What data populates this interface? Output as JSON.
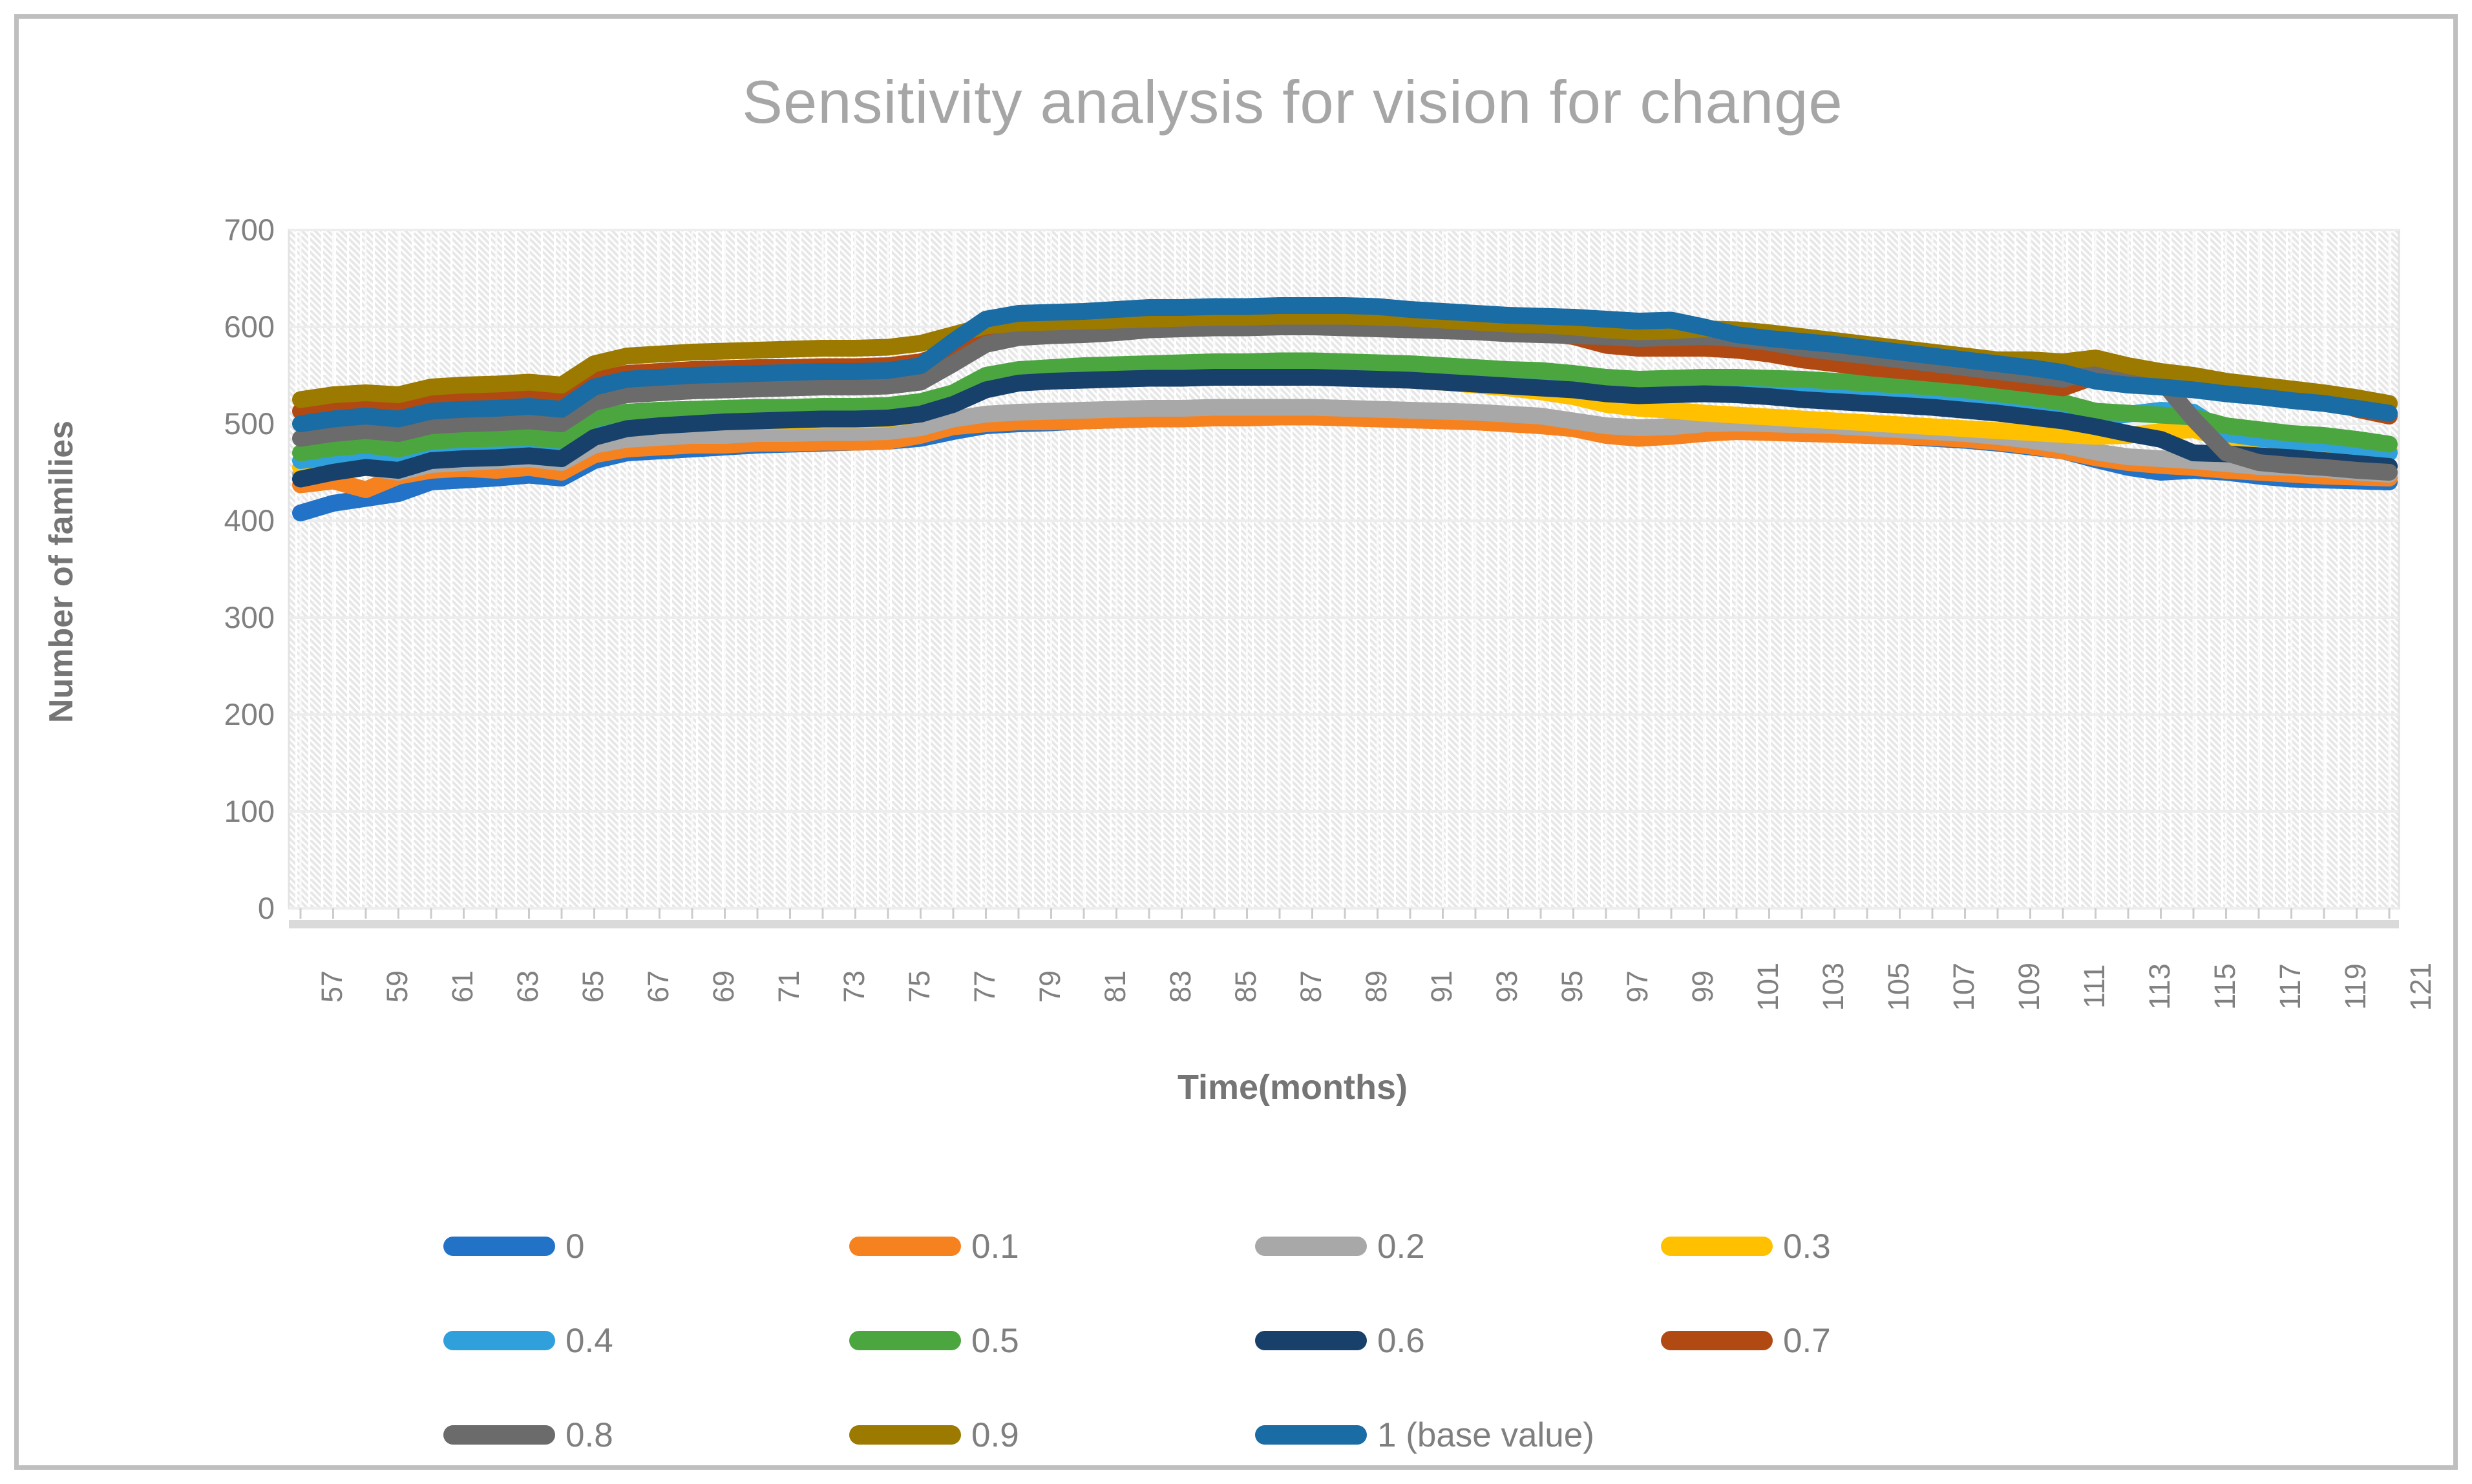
{
  "figure": {
    "border_color": "#bfbfbf",
    "background": "#ffffff"
  },
  "chart_data": {
    "type": "line",
    "title": "Sensitivity analysis for vision for change",
    "xlabel": "Time(months)",
    "ylabel": "Number of families",
    "xlim": [
      57,
      121
    ],
    "ylim": [
      0,
      700
    ],
    "y_ticks": [
      0,
      100,
      200,
      300,
      400,
      500,
      600,
      700
    ],
    "x_tick_labels": [
      57,
      59,
      61,
      63,
      65,
      67,
      69,
      71,
      73,
      75,
      77,
      79,
      81,
      83,
      85,
      87,
      89,
      91,
      93,
      95,
      97,
      99,
      101,
      103,
      105,
      107,
      109,
      111,
      113,
      115,
      117,
      119,
      121
    ],
    "x": [
      57,
      58,
      59,
      60,
      61,
      62,
      63,
      64,
      65,
      66,
      67,
      68,
      69,
      70,
      71,
      72,
      73,
      74,
      75,
      76,
      77,
      78,
      79,
      80,
      81,
      82,
      83,
      84,
      85,
      86,
      87,
      88,
      89,
      90,
      91,
      92,
      93,
      94,
      95,
      96,
      97,
      98,
      99,
      100,
      101,
      102,
      103,
      104,
      105,
      106,
      107,
      108,
      109,
      110,
      111,
      112,
      113,
      114,
      115,
      116,
      117,
      118,
      119,
      120,
      121
    ],
    "grid": "horizontal-major",
    "plot_background": "diagonal-hatch-pattern",
    "legend_position": "bottom",
    "series": [
      {
        "name": "0",
        "color": "#2272c8",
        "values": [
          408,
          418,
          423,
          428,
          440,
          442,
          444,
          447,
          444,
          462,
          470,
          472,
          474,
          476,
          478,
          479,
          480,
          481,
          482,
          485,
          492,
          498,
          500,
          501,
          503,
          504,
          505,
          506,
          506,
          507,
          508,
          508,
          507,
          507,
          506,
          505,
          504,
          502,
          500,
          497,
          493,
          490,
          491,
          493,
          494,
          493,
          491,
          490,
          488,
          487,
          485,
          483,
          480,
          476,
          472,
          463,
          455,
          450,
          452,
          450,
          446,
          443,
          442,
          441,
          440
        ]
      },
      {
        "name": "0.1",
        "color": "#f5821f",
        "values": [
          437,
          441,
          432,
          446,
          452,
          454,
          452,
          455,
          450,
          468,
          474,
          476,
          478,
          478,
          480,
          480,
          481,
          481,
          482,
          488,
          497,
          500,
          502,
          502,
          503,
          504,
          505,
          505,
          506,
          506,
          507,
          507,
          506,
          505,
          504,
          503,
          502,
          500,
          498,
          495,
          488,
          485,
          487,
          490,
          492,
          491,
          490,
          489,
          488,
          487,
          486,
          484,
          481,
          477,
          472,
          465,
          460,
          457,
          455,
          452,
          450,
          448,
          446,
          445,
          444
        ]
      },
      {
        "name": "0.2",
        "color": "#a8a8a8",
        "values": [
          448,
          452,
          455,
          450,
          458,
          460,
          462,
          464,
          460,
          478,
          484,
          486,
          488,
          488,
          490,
          490,
          491,
          491,
          492,
          496,
          505,
          510,
          512,
          513,
          514,
          515,
          516,
          516,
          517,
          517,
          517,
          517,
          516,
          515,
          514,
          513,
          512,
          510,
          508,
          503,
          498,
          496,
          497,
          500,
          501,
          500,
          499,
          498,
          496,
          494,
          492,
          490,
          487,
          483,
          478,
          471,
          466,
          464,
          462,
          459,
          456,
          455,
          453,
          450,
          448
        ]
      },
      {
        "name": "0.3",
        "color": "#ffc000",
        "values": [
          455,
          460,
          462,
          459,
          468,
          470,
          471,
          472,
          470,
          490,
          497,
          499,
          501,
          502,
          503,
          503,
          504,
          504,
          505,
          510,
          530,
          543,
          548,
          550,
          551,
          551,
          552,
          552,
          552,
          552,
          552,
          551,
          550,
          548,
          545,
          543,
          540,
          537,
          533,
          528,
          520,
          516,
          514,
          511,
          509,
          507,
          505,
          503,
          501,
          499,
          497,
          495,
          493,
          491,
          489,
          487,
          488,
          492,
          494,
          484,
          481,
          480,
          478,
          475,
          473
        ]
      },
      {
        "name": "0.4",
        "color": "#2fa0db",
        "values": [
          462,
          466,
          468,
          465,
          472,
          474,
          475,
          476,
          473,
          492,
          500,
          502,
          503,
          504,
          505,
          506,
          506,
          507,
          507,
          511,
          522,
          542,
          549,
          552,
          554,
          555,
          556,
          557,
          558,
          558,
          559,
          559,
          558,
          557,
          556,
          554,
          552,
          550,
          548,
          545,
          540,
          537,
          538,
          540,
          540,
          538,
          536,
          534,
          532,
          530,
          527,
          524,
          521,
          518,
          514,
          505,
          510,
          514,
          512,
          490,
          485,
          482,
          480,
          475,
          470
        ]
      },
      {
        "name": "0.5",
        "color": "#4ca640",
        "values": [
          470,
          475,
          478,
          474,
          482,
          484,
          485,
          486,
          483,
          505,
          512,
          514,
          515,
          516,
          517,
          517,
          518,
          518,
          519,
          523,
          532,
          550,
          556,
          558,
          560,
          561,
          562,
          563,
          564,
          564,
          565,
          565,
          564,
          563,
          562,
          560,
          558,
          556,
          555,
          552,
          548,
          546,
          547,
          548,
          548,
          547,
          546,
          544,
          542,
          540,
          538,
          535,
          531,
          527,
          522,
          513,
          511,
          509,
          507,
          498,
          494,
          490,
          488,
          484,
          479
        ]
      },
      {
        "name": "0.6",
        "color": "#17406b",
        "values": [
          443,
          450,
          455,
          452,
          462,
          464,
          465,
          467,
          464,
          486,
          495,
          498,
          500,
          502,
          503,
          504,
          505,
          505,
          506,
          510,
          520,
          535,
          542,
          544,
          545,
          546,
          547,
          547,
          548,
          548,
          548,
          548,
          547,
          546,
          545,
          543,
          541,
          539,
          537,
          535,
          531,
          529,
          530,
          531,
          530,
          528,
          525,
          523,
          521,
          519,
          517,
          514,
          511,
          507,
          503,
          497,
          490,
          484,
          470,
          469,
          467,
          465,
          462,
          459,
          456
        ]
      },
      {
        "name": "0.7",
        "color": "#b14a12",
        "values": [
          513,
          516,
          518,
          515,
          522,
          524,
          524,
          526,
          523,
          545,
          552,
          554,
          556,
          557,
          558,
          558,
          559,
          559,
          560,
          564,
          575,
          590,
          597,
          598,
          599,
          600,
          601,
          601,
          602,
          602,
          602,
          602,
          601,
          601,
          600,
          599,
          598,
          596,
          594,
          590,
          581,
          578,
          578,
          578,
          576,
          572,
          566,
          562,
          558,
          555,
          552,
          549,
          545,
          541,
          537,
          549,
          546,
          543,
          540,
          536,
          532,
          530,
          527,
          515,
          508
        ]
      },
      {
        "name": "0.8",
        "color": "#6b6b6b",
        "values": [
          485,
          490,
          493,
          490,
          498,
          500,
          501,
          503,
          500,
          522,
          530,
          532,
          534,
          535,
          536,
          537,
          538,
          538,
          539,
          543,
          562,
          582,
          589,
          591,
          592,
          594,
          597,
          598,
          599,
          599,
          600,
          600,
          599,
          598,
          597,
          596,
          595,
          593,
          592,
          591,
          590,
          588,
          589,
          590,
          588,
          584,
          578,
          574,
          570,
          566,
          562,
          558,
          554,
          550,
          546,
          555,
          548,
          545,
          505,
          470,
          460,
          457,
          455,
          452,
          450
        ]
      },
      {
        "name": "0.9",
        "color": "#9c7a00",
        "values": [
          525,
          530,
          532,
          530,
          538,
          540,
          541,
          543,
          540,
          562,
          570,
          572,
          574,
          575,
          576,
          577,
          578,
          578,
          579,
          583,
          592,
          601,
          604,
          605,
          606,
          607,
          608,
          609,
          610,
          610,
          611,
          611,
          611,
          610,
          609,
          607,
          605,
          603,
          602,
          600,
          597,
          595,
          596,
          598,
          597,
          594,
          590,
          586,
          582,
          578,
          574,
          570,
          566,
          566,
          564,
          568,
          560,
          554,
          550,
          544,
          540,
          536,
          532,
          527,
          521
        ]
      },
      {
        "name": "1 (base value)",
        "color": "#1a6ca4",
        "values": [
          500,
          505,
          508,
          505,
          513,
          515,
          516,
          518,
          515,
          538,
          546,
          548,
          550,
          551,
          552,
          553,
          554,
          554,
          555,
          560,
          585,
          608,
          614,
          615,
          616,
          618,
          620,
          620,
          621,
          621,
          622,
          622,
          622,
          621,
          618,
          616,
          614,
          612,
          611,
          610,
          608,
          606,
          607,
          600,
          592,
          588,
          585,
          582,
          578,
          574,
          570,
          566,
          562,
          558,
          553,
          544,
          540,
          538,
          535,
          531,
          528,
          524,
          521,
          516,
          511
        ]
      }
    ]
  }
}
